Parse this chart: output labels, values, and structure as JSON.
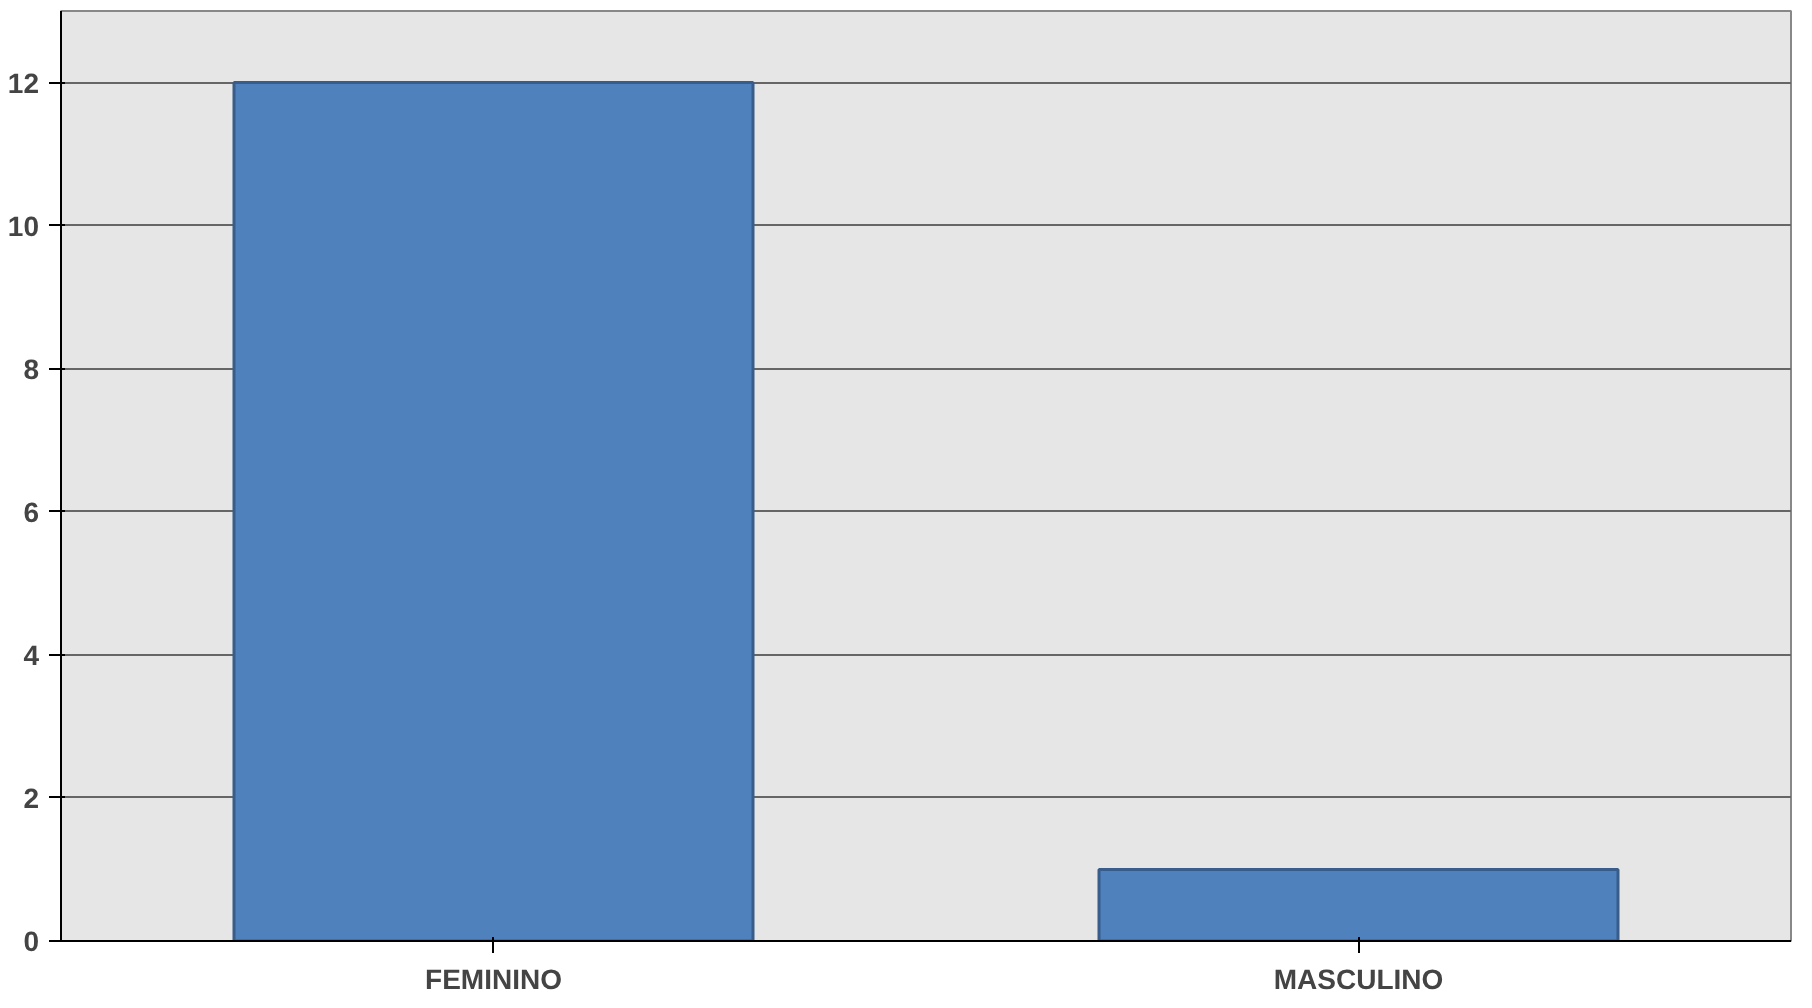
{
  "chart_data": {
    "type": "bar",
    "categories": [
      "FEMININO",
      "MASCULINO"
    ],
    "values": [
      12,
      1
    ],
    "color": "#4f81bd",
    "ylim": [
      0,
      13
    ],
    "yticks": [
      0,
      2,
      4,
      6,
      8,
      10,
      12
    ],
    "grid": "y"
  }
}
